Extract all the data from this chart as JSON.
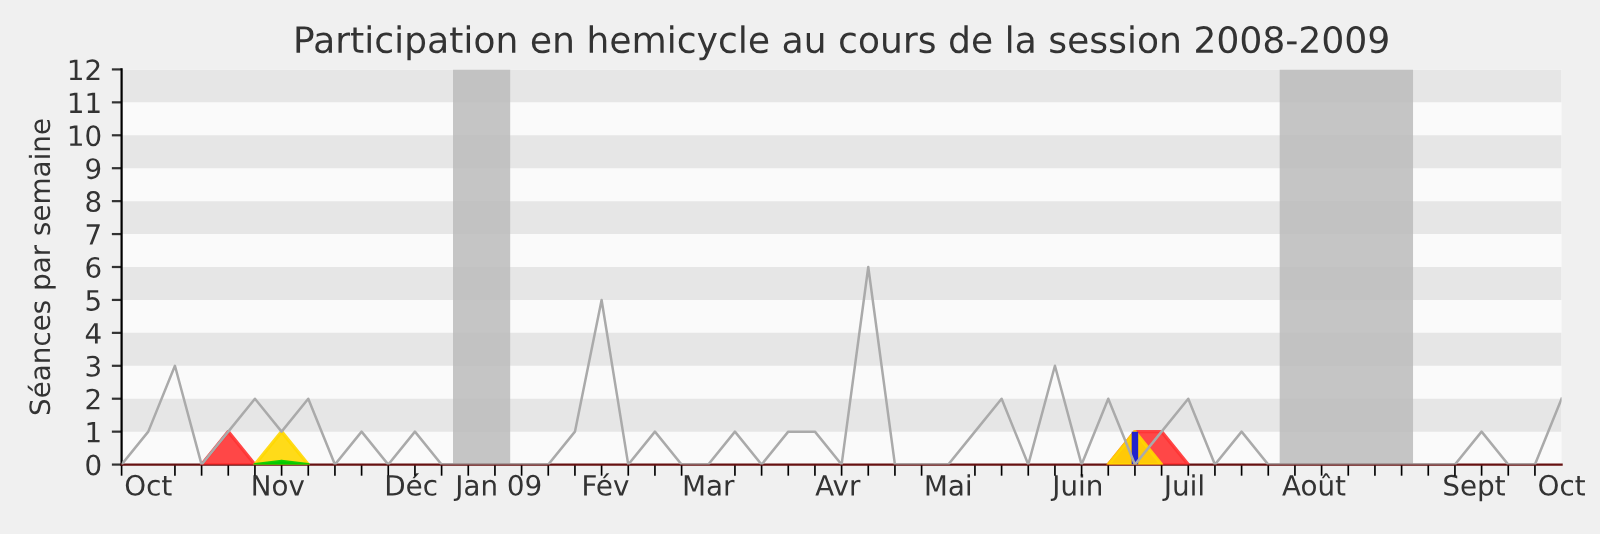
{
  "chart_data": {
    "type": "line",
    "title": "Participation en hemicycle au cours de la session 2008-2009",
    "ylabel": "Séances par semaine",
    "x": [
      "2008-09-29",
      "2008-10-06",
      "2008-10-13",
      "2008-10-20",
      "2008-10-27",
      "2008-11-03",
      "2008-11-10",
      "2008-11-17",
      "2008-11-24",
      "2008-12-01",
      "2008-12-08",
      "2008-12-15",
      "2008-12-22",
      "2008-12-29",
      "2009-01-05",
      "2009-01-12",
      "2009-01-19",
      "2009-01-26",
      "2009-02-02",
      "2009-02-09",
      "2009-02-16",
      "2009-02-23",
      "2009-03-02",
      "2009-03-09",
      "2009-03-16",
      "2009-03-23",
      "2009-03-30",
      "2009-04-06",
      "2009-04-13",
      "2009-04-20",
      "2009-04-27",
      "2009-05-04",
      "2009-05-11",
      "2009-05-18",
      "2009-05-25",
      "2009-06-01",
      "2009-06-08",
      "2009-06-15",
      "2009-06-22",
      "2009-06-29",
      "2009-07-06",
      "2009-07-13",
      "2009-07-20",
      "2009-07-27",
      "2009-08-03",
      "2009-08-10",
      "2009-08-17",
      "2009-08-24",
      "2009-08-31",
      "2009-09-07",
      "2009-09-14",
      "2009-09-21",
      "2009-09-28",
      "2009-10-05",
      "2009-10-12"
    ],
    "series": [
      {
        "type": "area",
        "color": "#ff3333",
        "values": [
          null,
          null,
          null,
          0,
          1,
          0,
          null,
          null,
          null,
          null,
          null,
          null,
          null,
          null,
          null,
          null,
          null,
          null,
          null,
          null,
          null,
          null,
          null,
          null,
          null,
          null,
          null,
          null,
          null,
          null,
          null,
          null,
          null,
          null,
          null,
          null,
          null,
          0,
          1,
          1,
          0,
          null,
          null,
          null,
          null,
          null,
          null,
          null,
          null,
          null,
          null,
          null,
          null,
          null,
          null
        ]
      },
      {
        "type": "area",
        "color": "#ffd700",
        "values": [
          null,
          null,
          null,
          null,
          null,
          0,
          1,
          0,
          null,
          null,
          null,
          null,
          null,
          null,
          null,
          null,
          null,
          null,
          null,
          null,
          null,
          null,
          null,
          null,
          null,
          null,
          null,
          null,
          null,
          null,
          null,
          null,
          null,
          null,
          null,
          null,
          null,
          0,
          1,
          0,
          null,
          null,
          null,
          null,
          null,
          null,
          null,
          null,
          null,
          null,
          null,
          null,
          null,
          null,
          null
        ]
      },
      {
        "type": "area",
        "color": "#00cc00",
        "values": [
          null,
          null,
          null,
          null,
          null,
          0,
          0.1,
          0,
          null,
          null,
          null,
          null,
          null,
          null,
          null,
          null,
          null,
          null,
          null,
          null,
          null,
          null,
          null,
          null,
          null,
          null,
          null,
          null,
          null,
          null,
          null,
          null,
          null,
          null,
          null,
          null,
          null,
          null,
          null,
          null,
          null,
          null,
          null,
          null,
          null,
          null,
          null,
          null,
          null,
          null,
          null,
          null,
          null,
          null,
          null
        ]
      },
      {
        "type": "bar",
        "color": "#2222cc",
        "values": [
          null,
          null,
          null,
          null,
          null,
          null,
          null,
          null,
          null,
          null,
          null,
          null,
          null,
          null,
          null,
          null,
          null,
          null,
          null,
          null,
          null,
          null,
          null,
          null,
          null,
          null,
          null,
          null,
          null,
          null,
          null,
          null,
          null,
          null,
          null,
          null,
          null,
          null,
          1,
          null,
          null,
          null,
          null,
          null,
          null,
          null,
          null,
          null,
          null,
          null,
          null,
          null,
          null,
          null,
          null
        ]
      },
      {
        "type": "line",
        "color": "#aaaaaa",
        "values": [
          0,
          1,
          3,
          0,
          1,
          2,
          1,
          2,
          0,
          1,
          0,
          1,
          0,
          0,
          0,
          0,
          0,
          1,
          5,
          0,
          1,
          0,
          0,
          1,
          0,
          1,
          1,
          0,
          6,
          0,
          0,
          0,
          1,
          2,
          0,
          3,
          0,
          2,
          0,
          1,
          2,
          0,
          1,
          0,
          0,
          0,
          0,
          0,
          0,
          0,
          0,
          1,
          0,
          0,
          2
        ]
      }
    ],
    "bands": [
      {
        "axis": "y",
        "from": 1,
        "to": 2,
        "color": "#e6e6e6"
      },
      {
        "axis": "y",
        "from": 3,
        "to": 4,
        "color": "#e6e6e6"
      },
      {
        "axis": "y",
        "from": 5,
        "to": 6,
        "color": "#e6e6e6"
      },
      {
        "axis": "y",
        "from": 7,
        "to": 8,
        "color": "#e6e6e6"
      },
      {
        "axis": "y",
        "from": 9,
        "to": 10,
        "color": "#e6e6e6"
      },
      {
        "axis": "y",
        "from": 11,
        "to": 12,
        "color": "#e6e6e6"
      },
      {
        "axis": "x",
        "from": "2008-12-25",
        "to": "2009-01-09",
        "color": "#bbbbbb"
      },
      {
        "axis": "x",
        "from": "2009-07-30",
        "to": "2009-09-03",
        "color": "#bbbbbb"
      }
    ],
    "xlim": [
      "2008-09-29",
      "2009-10-12"
    ],
    "xticks": [
      {
        "value": "2008-10-06",
        "label": "Oct"
      },
      {
        "value": "2008-11-09",
        "label": "Nov"
      },
      {
        "value": "2008-12-14",
        "label": "Déc"
      },
      {
        "value": "2009-01-06",
        "label": "Jan 09"
      },
      {
        "value": "2009-02-03",
        "label": "Fév"
      },
      {
        "value": "2009-03-02",
        "label": "Mar"
      },
      {
        "value": "2009-04-05",
        "label": "Avr"
      },
      {
        "value": "2009-05-04",
        "label": "Mai"
      },
      {
        "value": "2009-06-07",
        "label": "Juin"
      },
      {
        "value": "2009-07-05",
        "label": "Juil"
      },
      {
        "value": "2009-08-08",
        "label": "Août"
      },
      {
        "value": "2009-09-19",
        "label": "Sept"
      },
      {
        "value": "2009-10-12",
        "label": "Oct"
      }
    ],
    "ylim": [
      0,
      12
    ],
    "yticks": [
      0,
      1,
      2,
      3,
      4,
      5,
      6,
      7,
      8,
      9,
      10,
      11,
      12
    ],
    "legend": false
  }
}
